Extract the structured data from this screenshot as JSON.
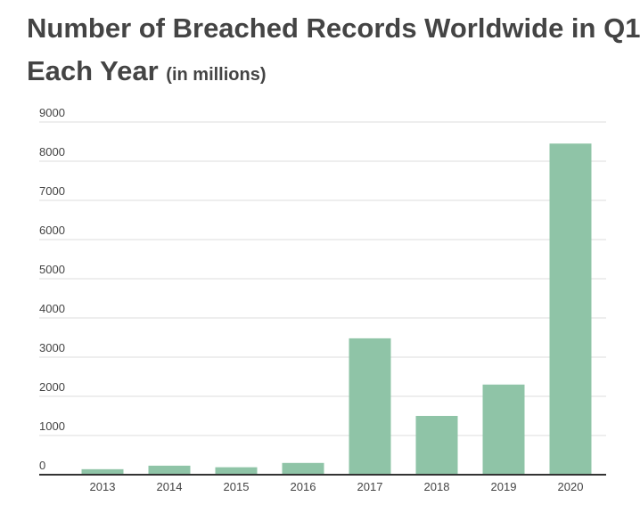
{
  "chart_data": {
    "type": "bar",
    "title_line1": "Number of Breached Records Worldwide in Q1",
    "title_line2": "Each Year",
    "subtitle": "(in millions)",
    "xlabel": "",
    "ylabel": "",
    "categories": [
      "2013",
      "2014",
      "2015",
      "2016",
      "2017",
      "2018",
      "2019",
      "2020"
    ],
    "values": [
      140,
      230,
      190,
      300,
      3480,
      1500,
      2300,
      8450
    ],
    "ylim": [
      0,
      9000
    ],
    "yticks": [
      0,
      1000,
      2000,
      3000,
      4000,
      5000,
      6000,
      7000,
      8000,
      9000
    ],
    "grid": true,
    "bar_color": "#8fc4a7"
  }
}
